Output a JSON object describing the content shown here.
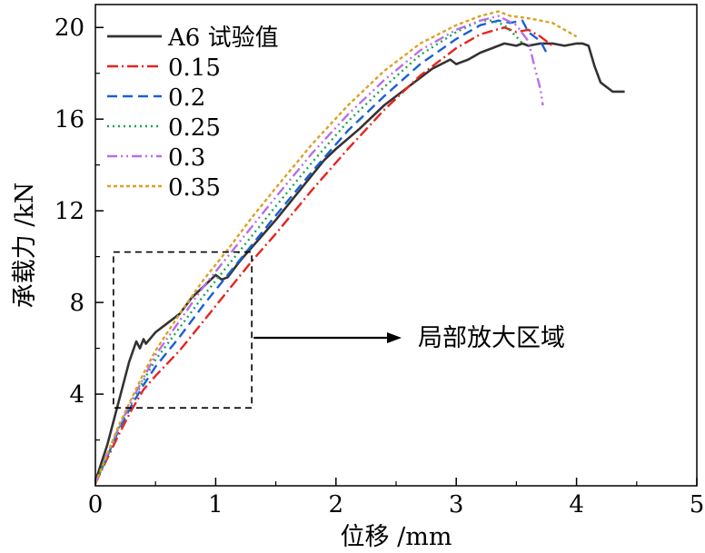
{
  "chart_data": {
    "type": "line",
    "xlabel": "位移 /mm",
    "ylabel": "承载力 /kN",
    "xlim": [
      0,
      5
    ],
    "ylim": [
      0,
      21
    ],
    "xticks": [
      0,
      1,
      2,
      3,
      4,
      5
    ],
    "yticks": [
      4,
      8,
      12,
      16,
      20
    ],
    "xtick_labels": [
      "0",
      "1",
      "2",
      "3",
      "4",
      "5"
    ],
    "ytick_labels": [
      "4",
      "8",
      "12",
      "16",
      "20"
    ],
    "grid": false,
    "legend_position": "top-left",
    "series": [
      {
        "name": "A6 试验值",
        "color": "#333333",
        "dash": "solid",
        "x": [
          0,
          0.1,
          0.2,
          0.28,
          0.34,
          0.37,
          0.4,
          0.42,
          0.5,
          0.6,
          0.7,
          0.8,
          0.9,
          1.0,
          1.05,
          1.1,
          1.2,
          1.3,
          1.5,
          1.7,
          1.9,
          2.0,
          2.2,
          2.4,
          2.6,
          2.8,
          2.95,
          3.0,
          3.1,
          3.2,
          3.3,
          3.4,
          3.5,
          3.55,
          3.6,
          3.7,
          3.8,
          3.9,
          4.0,
          4.05,
          4.1,
          4.15,
          4.2,
          4.3,
          4.4
        ],
        "y": [
          0.2,
          1.8,
          3.8,
          5.4,
          6.3,
          6.0,
          6.4,
          6.2,
          6.7,
          7.1,
          7.5,
          8.2,
          8.7,
          9.2,
          9.0,
          9.1,
          9.8,
          10.4,
          11.6,
          12.9,
          14.2,
          14.7,
          15.6,
          16.6,
          17.4,
          18.2,
          18.6,
          18.4,
          18.6,
          18.9,
          19.1,
          19.3,
          19.2,
          19.3,
          19.2,
          19.3,
          19.3,
          19.2,
          19.3,
          19.3,
          19.2,
          18.3,
          17.6,
          17.2,
          17.2
        ]
      },
      {
        "name": "0.15",
        "color": "#e8241f",
        "dash": "12,4,2,4",
        "x": [
          0,
          0.1,
          0.2,
          0.3,
          0.4,
          0.5,
          0.7,
          0.9,
          1.1,
          1.3,
          1.5,
          1.8,
          2.1,
          2.4,
          2.7,
          3.0,
          3.2,
          3.4,
          3.5,
          3.6,
          3.7,
          3.8
        ],
        "y": [
          0.1,
          1.2,
          2.3,
          3.3,
          4.2,
          4.8,
          5.9,
          7.2,
          8.5,
          9.8,
          11.0,
          12.9,
          14.7,
          16.4,
          17.9,
          19.1,
          19.7,
          20.0,
          19.8,
          19.9,
          19.6,
          19.2
        ]
      },
      {
        "name": "0.2",
        "color": "#1a5fd8",
        "dash": "11,6",
        "x": [
          0,
          0.1,
          0.2,
          0.3,
          0.4,
          0.5,
          0.7,
          0.9,
          1.1,
          1.3,
          1.5,
          1.8,
          2.1,
          2.4,
          2.7,
          3.0,
          3.2,
          3.35,
          3.45,
          3.55,
          3.6,
          3.7,
          3.75
        ],
        "y": [
          0.1,
          1.3,
          2.5,
          3.5,
          4.4,
          5.2,
          6.5,
          7.9,
          9.2,
          10.5,
          11.8,
          13.7,
          15.5,
          17.0,
          18.4,
          19.5,
          20.1,
          20.3,
          20.2,
          20.3,
          19.8,
          19.4,
          18.9
        ]
      },
      {
        "name": "0.25",
        "color": "#1aa64b",
        "dash": "2,4",
        "x": [
          0,
          0.1,
          0.2,
          0.3,
          0.4,
          0.5,
          0.7,
          0.9,
          1.1,
          1.3,
          1.5,
          1.8,
          2.1,
          2.4,
          2.7,
          3.0,
          3.2,
          3.3,
          3.4,
          3.5,
          3.55
        ],
        "y": [
          0.1,
          1.3,
          2.6,
          3.6,
          4.6,
          5.5,
          6.9,
          8.3,
          9.6,
          10.9,
          12.2,
          14.1,
          15.9,
          17.4,
          18.8,
          19.8,
          20.3,
          20.3,
          20.1,
          19.6,
          19.3
        ]
      },
      {
        "name": "0.3",
        "color": "#b96ee8",
        "dash": "11,4,2,4,2,4",
        "x": [
          0,
          0.1,
          0.2,
          0.3,
          0.4,
          0.5,
          0.7,
          0.9,
          1.1,
          1.3,
          1.5,
          1.8,
          2.1,
          2.4,
          2.7,
          3.0,
          3.2,
          3.35,
          3.5,
          3.6,
          3.65,
          3.7,
          3.72
        ],
        "y": [
          0.1,
          1.4,
          2.6,
          3.7,
          4.7,
          5.7,
          7.2,
          8.7,
          10.0,
          11.3,
          12.6,
          14.5,
          16.2,
          17.7,
          19.0,
          19.9,
          20.3,
          20.5,
          20.1,
          19.4,
          18.3,
          17.3,
          16.6
        ]
      },
      {
        "name": "0.35",
        "color": "#dca023",
        "dash": "4,3",
        "x": [
          0,
          0.1,
          0.2,
          0.3,
          0.4,
          0.5,
          0.7,
          0.9,
          1.1,
          1.3,
          1.5,
          1.8,
          2.1,
          2.4,
          2.7,
          3.0,
          3.2,
          3.35,
          3.45,
          3.6,
          3.7,
          3.8,
          3.9,
          4.0
        ],
        "y": [
          0.1,
          1.4,
          2.7,
          3.8,
          4.9,
          5.9,
          7.5,
          9.0,
          10.3,
          11.7,
          13.0,
          14.9,
          16.6,
          18.1,
          19.3,
          20.1,
          20.5,
          20.7,
          20.5,
          20.4,
          20.3,
          20.2,
          19.9,
          19.6
        ]
      }
    ],
    "annotation": {
      "label": "局部放大区域",
      "box_x_range": [
        0.15,
        1.3
      ],
      "box_y_range": [
        3.4,
        10.2
      ]
    }
  }
}
